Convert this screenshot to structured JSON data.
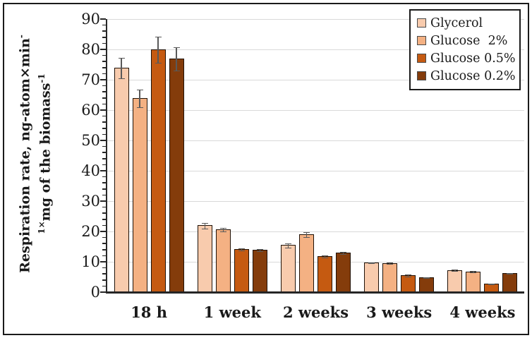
{
  "figure": {
    "background": "#ffffff",
    "border_color": "#1a1a1a"
  },
  "chart_data": {
    "type": "bar",
    "title": "",
    "ylabel_line1": "Respiration rate, ng-atom×min",
    "ylabel_line1_sup": "-",
    "ylabel_line2_sup": "1×",
    "ylabel_line2": "mg of the biomass",
    "ylabel_line2_sup2": "-1",
    "categories": [
      "18 h",
      "1 week",
      "2 weeks",
      "3 weeks",
      "4 weeks"
    ],
    "series": [
      {
        "name": "Glycerol",
        "color": "#F8CBAD",
        "values": [
          74,
          22,
          15.5,
          9.8,
          7.3
        ],
        "errors": [
          3.5,
          1.0,
          0.8,
          0.3,
          0.3
        ]
      },
      {
        "name": "Glucose  2%",
        "color": "#F4B183",
        "values": [
          64,
          20.7,
          19,
          9.6,
          6.8
        ],
        "errors": [
          3.0,
          0.8,
          0.9,
          0.3,
          0.3
        ]
      },
      {
        "name": "Glucose 0.5%",
        "color": "#C55A11",
        "values": [
          80,
          14.2,
          11.8,
          5.6,
          2.9
        ],
        "errors": [
          4.5,
          0.5,
          0.5,
          0.4,
          0.2
        ]
      },
      {
        "name": "Glucose 0.2%",
        "color": "#843C0B",
        "values": [
          77,
          14,
          13,
          4.9,
          6.3
        ],
        "errors": [
          4.0,
          0.5,
          0.5,
          0.3,
          0.3
        ]
      }
    ],
    "ylim": [
      0,
      90
    ],
    "ytick_step": 10,
    "minor_tick_step": 2,
    "grid": true,
    "legend_position": "top-right",
    "gridline_color": "#d9d9d9",
    "axis_color": "#262626",
    "error_bar_color": "#595959",
    "bar_border_color": "#1f1208"
  }
}
